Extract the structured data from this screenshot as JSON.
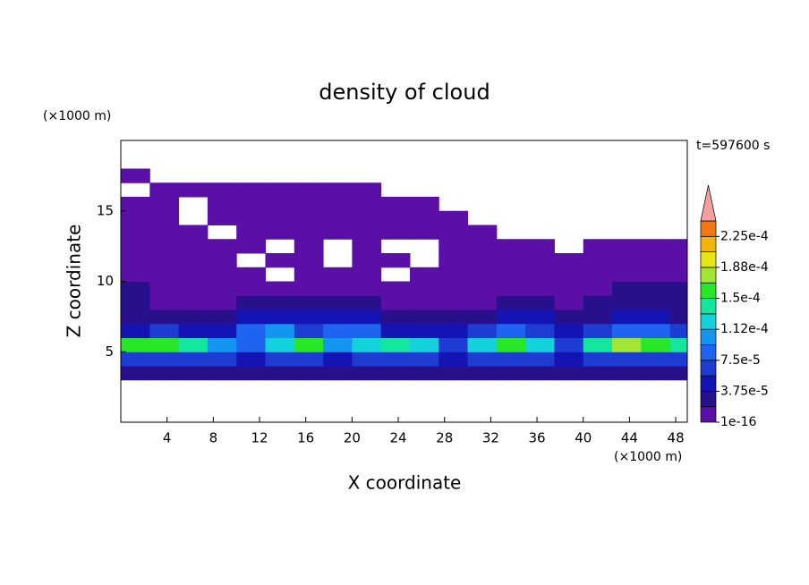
{
  "chart_data": {
    "type": "contour",
    "title": "density of cloud",
    "x_unit": "(×1000 m)",
    "y_unit": "(×1000 m)",
    "time_label": "t=597600 s",
    "xlabel": "X coordinate",
    "ylabel": "Z coordinate",
    "xlim": [
      0,
      49
    ],
    "ylim": [
      0,
      20
    ],
    "xticks": [
      4,
      8,
      12,
      16,
      20,
      24,
      28,
      32,
      36,
      40,
      44,
      48
    ],
    "yticks": [
      5,
      10,
      15
    ],
    "x": [
      1.25,
      3.75,
      6.25,
      8.75,
      11.25,
      13.75,
      16.25,
      18.75,
      21.25,
      23.75,
      26.25,
      28.75,
      31.25,
      33.75,
      36.25,
      38.75,
      41.25,
      43.75,
      46.25,
      48.75
    ],
    "z": [
      3.5,
      4.5,
      5.5,
      6.5,
      7.5,
      8.5,
      9.5,
      10.5,
      11.5,
      12.5,
      13.5,
      14.5,
      15.5,
      16.5,
      17.5
    ],
    "values": [
      [
        2e-05,
        2e-05,
        2e-05,
        2e-05,
        2e-05,
        2e-05,
        2e-05,
        2e-05,
        2e-05,
        2e-05,
        2e-05,
        3e-05,
        2e-05,
        2e-05,
        2e-05,
        2e-05,
        2e-05,
        2e-05,
        2e-05,
        2e-05
      ],
      [
        6e-05,
        7e-05,
        7e-05,
        6e-05,
        5e-05,
        6e-05,
        7e-05,
        5e-05,
        6e-05,
        7e-05,
        6e-05,
        4e-05,
        6e-05,
        7e-05,
        6e-05,
        4e-05,
        7e-05,
        7e-05,
        6e-05,
        6e-05
      ],
      [
        0.00015,
        0.00016,
        0.00014,
        0.00011,
        8e-05,
        0.00013,
        0.00015,
        0.0001,
        0.00013,
        0.00014,
        0.00012,
        7e-05,
        0.00013,
        0.00016,
        0.00012,
        6e-05,
        0.00014,
        0.00017,
        0.00016,
        0.00014
      ],
      [
        5e-05,
        6e-05,
        4e-05,
        4e-05,
        9e-05,
        0.00011,
        6e-05,
        8e-05,
        9e-05,
        5e-05,
        4e-05,
        4e-05,
        7e-05,
        9e-05,
        6e-05,
        4e-05,
        6e-05,
        9e-05,
        8e-05,
        6e-05
      ],
      [
        3.5e-05,
        3e-05,
        2.5e-05,
        2.5e-05,
        4e-05,
        5e-05,
        4e-05,
        4e-05,
        4e-05,
        3e-05,
        2.5e-05,
        2.5e-05,
        3e-05,
        4e-05,
        4e-05,
        2.5e-05,
        3e-05,
        4e-05,
        4e-05,
        3e-05
      ],
      [
        2e-05,
        1.5e-05,
        1.5e-05,
        1.5e-05,
        2e-05,
        2e-05,
        2.5e-05,
        2e-05,
        2e-05,
        1.5e-05,
        1.5e-05,
        1.5e-05,
        1.5e-05,
        2e-05,
        2e-05,
        1.5e-05,
        2e-05,
        2e-05,
        2.5e-05,
        2e-05
      ],
      [
        2e-05,
        1e-05,
        1e-05,
        1e-05,
        1e-05,
        5e-06,
        1e-05,
        1e-05,
        5e-06,
        1e-05,
        5e-06,
        5e-06,
        5e-06,
        1e-05,
        1e-05,
        5e-06,
        1e-05,
        2e-05,
        2e-05,
        2e-05
      ],
      [
        1e-05,
        5e-06,
        5e-06,
        5e-06,
        5e-06,
        null,
        5e-06,
        5e-06,
        5e-06,
        null,
        5e-06,
        5e-06,
        5e-06,
        5e-06,
        5e-06,
        5e-06,
        5e-06,
        5e-06,
        1e-05,
        1e-05
      ],
      [
        5e-06,
        1e-06,
        1e-06,
        1e-06,
        null,
        1e-06,
        1e-06,
        null,
        1e-06,
        1e-06,
        null,
        1e-06,
        1e-06,
        1e-06,
        1e-06,
        1e-06,
        1e-06,
        1e-06,
        5e-06,
        5e-06
      ],
      [
        1e-06,
        1e-06,
        1e-06,
        1e-06,
        1e-06,
        null,
        1e-06,
        null,
        1e-06,
        null,
        null,
        1e-06,
        1e-06,
        1e-06,
        1e-06,
        null,
        1e-06,
        1e-06,
        1e-06,
        1e-06
      ],
      [
        1e-06,
        1e-06,
        1e-06,
        null,
        1e-06,
        1e-06,
        1e-06,
        1e-06,
        1e-06,
        1e-06,
        1e-06,
        1e-06,
        1e-06,
        null,
        null,
        null,
        null,
        null,
        null,
        null
      ],
      [
        1e-06,
        1e-06,
        null,
        1e-06,
        1e-06,
        1e-06,
        1e-06,
        1e-06,
        1e-06,
        1e-06,
        1e-06,
        1e-06,
        null,
        null,
        null,
        null,
        null,
        null,
        null,
        null
      ],
      [
        1e-06,
        1e-06,
        null,
        1e-06,
        1e-06,
        1e-06,
        1e-06,
        1e-06,
        1e-06,
        1e-06,
        1e-06,
        null,
        null,
        null,
        null,
        null,
        null,
        null,
        null,
        null
      ],
      [
        null,
        1e-06,
        1e-06,
        1e-06,
        1e-06,
        1e-06,
        1e-06,
        1e-06,
        1e-06,
        null,
        null,
        null,
        null,
        null,
        null,
        null,
        null,
        null,
        null,
        null
      ],
      [
        1e-06,
        null,
        null,
        null,
        null,
        null,
        null,
        null,
        null,
        null,
        null,
        null,
        null,
        null,
        null,
        null,
        null,
        null,
        null,
        null
      ]
    ],
    "levels": [
      1e-16,
      1.875e-05,
      3.75e-05,
      5.625e-05,
      7.5e-05,
      9.375e-05,
      0.0001125,
      0.00013125,
      0.00015,
      0.00016875,
      0.0001875,
      0.00020625,
      0.000225,
      0.00024375
    ],
    "colors": [
      "#5a0fa6",
      "#28108c",
      "#1414b4",
      "#1e3cd2",
      "#1e64f0",
      "#1496f0",
      "#14d2dc",
      "#14e6a0",
      "#28e628",
      "#a0e632",
      "#e6e614",
      "#f0b40a",
      "#f07814",
      "#f5a0a0"
    ],
    "colorbar_ticks": [
      {
        "value": 1e-16,
        "label": "1e-16"
      },
      {
        "value": 3.75e-05,
        "label": "3.75e-5"
      },
      {
        "value": 7.5e-05,
        "label": "7.5e-5"
      },
      {
        "value": 0.0001125,
        "label": "1.12e-4"
      },
      {
        "value": 0.00015,
        "label": "1.5e-4"
      },
      {
        "value": 0.0001875,
        "label": "1.88e-4"
      },
      {
        "value": 0.000225,
        "label": "2.25e-4"
      }
    ]
  }
}
